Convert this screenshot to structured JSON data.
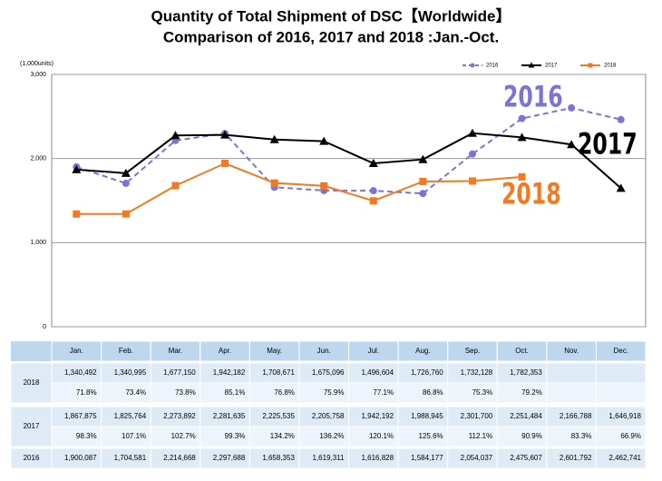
{
  "chart_data": {
    "type": "line",
    "title": "Quantity of Total Shipment of DSC【Worldwide】",
    "subtitle": "Comparison of 2016, 2017 and 2018 :Jan.-Oct.",
    "y_label": "(1,000units)",
    "categories": [
      "Jan.",
      "Feb.",
      "Mar.",
      "Apr.",
      "May.",
      "Jun.",
      "Jul.",
      "Aug.",
      "Sep.",
      "Oct.",
      "Nov.",
      "Dec."
    ],
    "ylim": [
      0,
      3000
    ],
    "yticks": [
      0,
      {
        "value": 1000,
        "label": "1,000"
      },
      {
        "value": 2000,
        "label": "2,000"
      },
      {
        "value": 3000,
        "label": "3,000"
      }
    ],
    "grid": true,
    "legend": "top-right",
    "series": [
      {
        "name": "2016",
        "color": "#7b74d6",
        "dashed": true,
        "marker": "circle",
        "values": [
          1900.087,
          1704.581,
          2214.668,
          2297.688,
          1658.353,
          1619.311,
          1616.828,
          1584.177,
          2054.037,
          2475.607,
          2601.792,
          2462.741
        ],
        "value_labels": [
          "1,900,087",
          "1,704,581",
          "2,214,668",
          "2,297,688",
          "1,658,353",
          "1,619,311",
          "1,616,828",
          "1,584,177",
          "2,054,037",
          "2,475,607",
          "2,601,792",
          "2,462,741"
        ]
      },
      {
        "name": "2017",
        "color": "#000000",
        "dashed": false,
        "marker": "triangle",
        "values": [
          1867.875,
          1825.764,
          2273.892,
          2281.635,
          2225.535,
          2205.758,
          1942.192,
          1988.945,
          2301.7,
          2251.484,
          2166.788,
          1646.918
        ],
        "value_labels": [
          "1,867,875",
          "1,825,764",
          "2,273,892",
          "2,281,635",
          "2,225,535",
          "2,205,758",
          "1,942,192",
          "1,988,945",
          "2,301,700",
          "2,251,484",
          "2,166,788",
          "1,646,918"
        ],
        "ratio_labels": [
          "98.3%",
          "107.1%",
          "102.7%",
          "99.3%",
          "134.2%",
          "136.2%",
          "120.1%",
          "125.6%",
          "112.1%",
          "90.9%",
          "83.3%",
          "66.9%"
        ]
      },
      {
        "name": "2018",
        "color": "#f47920",
        "dashed": false,
        "marker": "square",
        "values": [
          1340.492,
          1340.995,
          1677.15,
          1942.182,
          1708.671,
          1675.096,
          1496.604,
          1726.76,
          1732.128,
          1782.353,
          null,
          null
        ],
        "value_labels": [
          "1,340,492",
          "1,340,995",
          "1,677,150",
          "1,942,182",
          "1,708,671",
          "1,675,096",
          "1,496,604",
          "1,726,760",
          "1,732,128",
          "1,782,353",
          null,
          null
        ],
        "ratio_labels": [
          "71.8%",
          "73.4%",
          "73.8%",
          "85.1%",
          "76.8%",
          "75.9%",
          "77.1%",
          "86.8%",
          "75.3%",
          "79.2%",
          null,
          null
        ]
      }
    ]
  }
}
